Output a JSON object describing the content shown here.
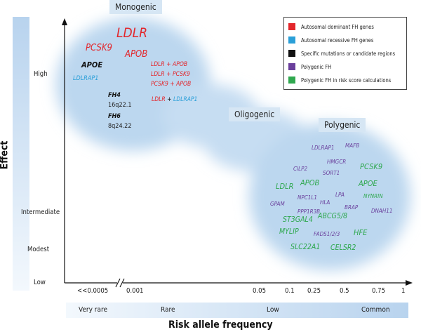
{
  "axes": {
    "y_label": "Effect",
    "x_label": "Risk allele frequency",
    "y_ticks": [
      "High",
      "Intermediate",
      "Modest",
      "Low"
    ],
    "x_ticks": [
      "<<0.0005",
      "0.001",
      "0.05",
      "0.1",
      "0.25",
      "0.5",
      "0.75",
      "1"
    ],
    "frequency_bands": [
      "Very rare",
      "Rare",
      "Low",
      "Common"
    ]
  },
  "categories": {
    "monogenic": "Monogenic",
    "oligogenic": "Oligogenic",
    "polygenic": "Polygenic"
  },
  "legend": [
    {
      "label": "Autosomal dominant FH genes",
      "color": "#e3262b"
    },
    {
      "label": "Autosomal recessive FH genes",
      "color": "#2a9fd8"
    },
    {
      "label": "Specific mutations or candidate regions",
      "color": "#111111"
    },
    {
      "label": "Polygenic FH",
      "color": "#6a3f9c"
    },
    {
      "label": "Polygenic FH in risk score calculations",
      "color": "#2fa84f"
    }
  ],
  "monogenic_genes": {
    "ldlr": "LDLR",
    "pcsk9": "PCSK9",
    "apob": "APOB",
    "apoe": "APOE",
    "ldlrap1": "LDLRAP1",
    "combo1": "LDLR + APOB",
    "combo2": "LDLR + PCSK9",
    "combo3": "PCSK9 + APOB",
    "combo4_a": "LDLR",
    "combo4_plus": " + ",
    "combo4_b": "LDLRAP1",
    "fh4": "FH4",
    "fh4_loc": "16q22.1",
    "fh6": "FH6",
    "fh6_loc": "8q24.22"
  },
  "polygenic_genes": {
    "ldlrap1": "LDLRAP1",
    "mafb": "MAFB",
    "hmgcr": "HMGCR",
    "cilp2": "CILP2",
    "sort1": "SORT1",
    "pcsk9": "PCSK9",
    "ldlr": "LDLR",
    "apob": "APOB",
    "apoe": "APOE",
    "npc1l1": "NPC1L1",
    "lpa": "LPA",
    "nynrin": "NYNRIN",
    "gpam": "GPAM",
    "hla": "HLA",
    "brap": "BRAP",
    "dnah11": "DNAH11",
    "ppp1r3b": "PPP1R3B",
    "st3gal4": "ST3GAL4",
    "abcg58": "ABCG5/8",
    "mylip": "MYLIP",
    "fads": "FADS1/2/3",
    "hfe": "HFE",
    "slc22a1": "SLC22A1",
    "celsr2": "CELSR2"
  }
}
